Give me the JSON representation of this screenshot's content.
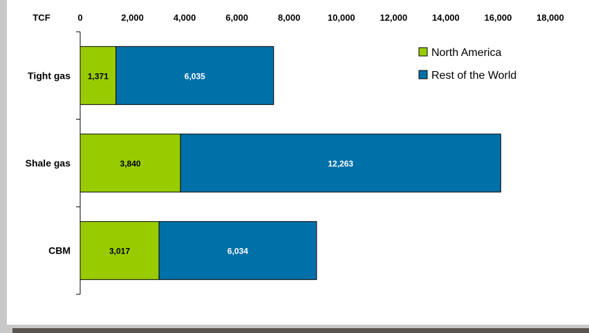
{
  "chart_data": {
    "type": "bar",
    "orientation": "horizontal",
    "stacked": true,
    "unit_label": "TCF",
    "categories": [
      "Tight gas",
      "Shale gas",
      "CBM"
    ],
    "series": [
      {
        "name": "North America",
        "values": [
          1371,
          3840,
          3017
        ],
        "color": "#99cc00",
        "label_color": "#000000"
      },
      {
        "name": "Rest of the World",
        "values": [
          6035,
          12263,
          6034
        ],
        "color": "#0070a8",
        "label_color": "#ffffff"
      }
    ],
    "value_labels": [
      [
        "1,371",
        "3,840",
        "3,017"
      ],
      [
        "6,035",
        "12,263",
        "6,034"
      ]
    ],
    "xlim": [
      0,
      18000
    ],
    "xticks": [
      0,
      2000,
      4000,
      6000,
      8000,
      10000,
      12000,
      14000,
      16000,
      18000
    ],
    "xtick_labels": [
      "0",
      "2,000",
      "4,000",
      "6,000",
      "8,000",
      "10,000",
      "12,000",
      "14,000",
      "16,000",
      "18,000"
    ],
    "xaxis_position": "top",
    "grid": false,
    "legend_position": "top-right"
  }
}
